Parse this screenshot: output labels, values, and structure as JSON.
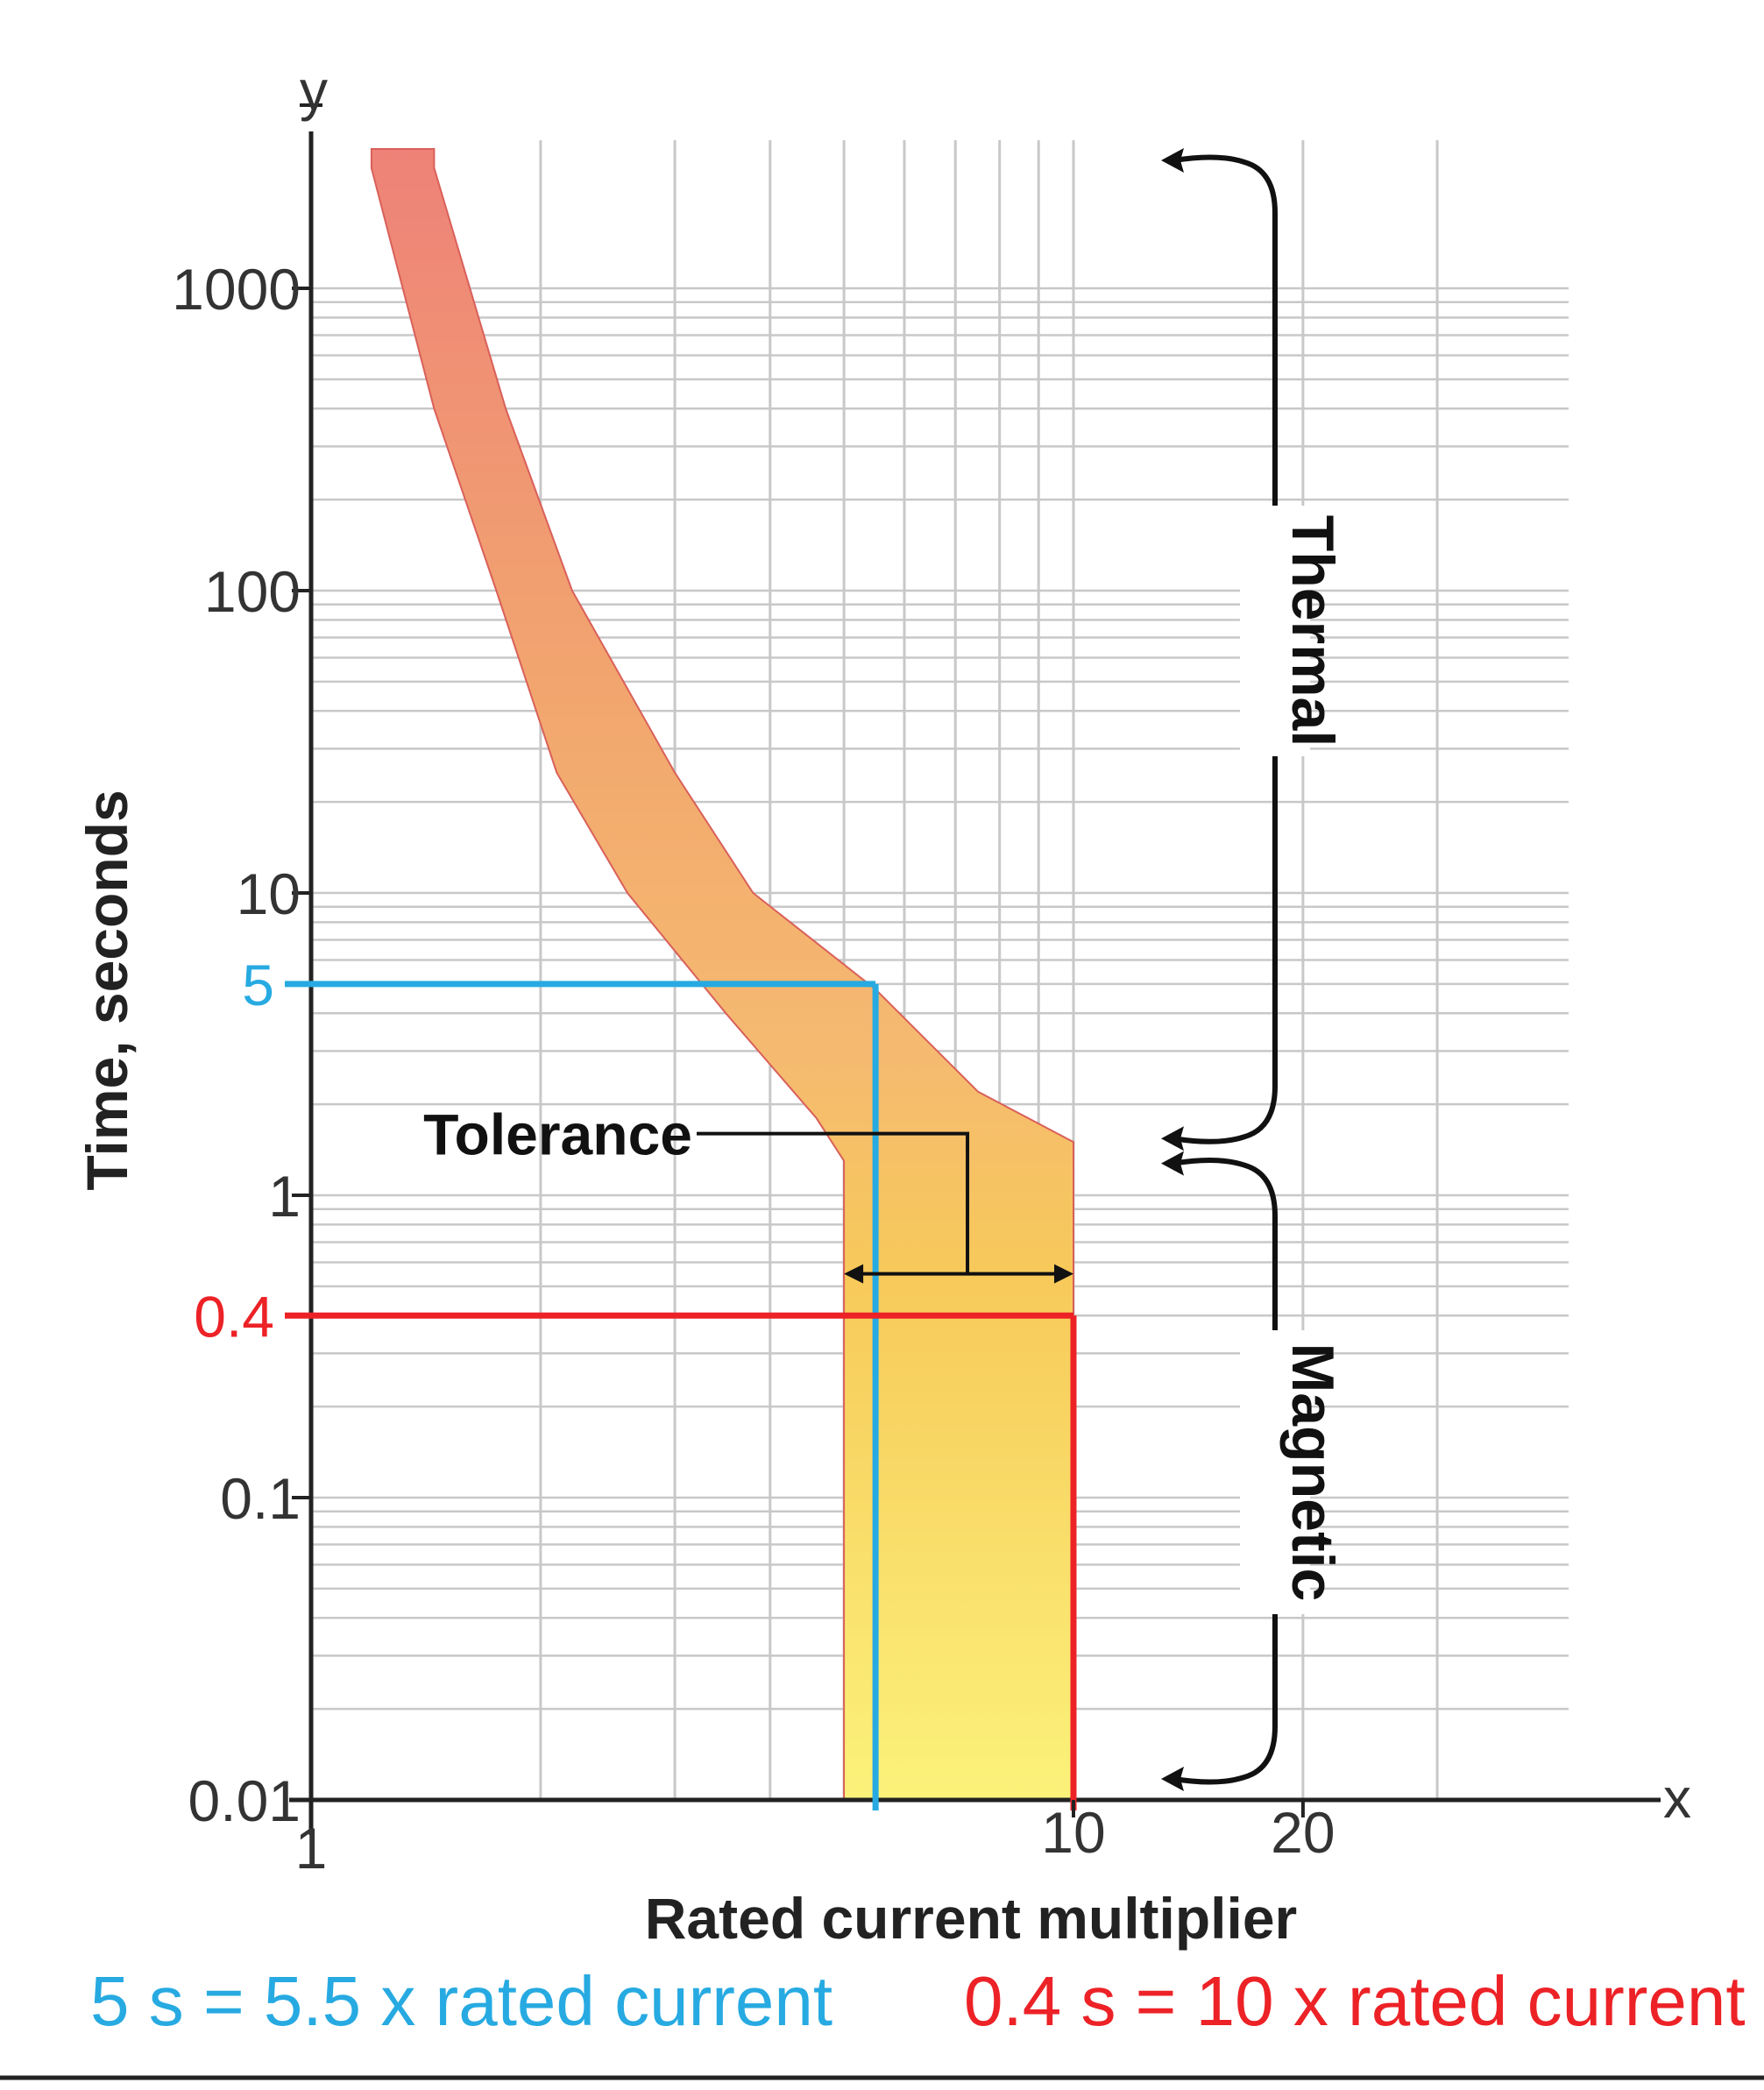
{
  "chart_data": {
    "type": "area",
    "title": "",
    "xlabel": "Rated current multiplier",
    "ylabel": "Time, seconds",
    "x_axis_letter": "x",
    "y_axis_letter": "y",
    "xscale": "log",
    "yscale": "log",
    "xlim": [
      1,
      50
    ],
    "ylim": [
      0.01,
      5000
    ],
    "x_ticks": [
      {
        "value": 1,
        "label": "1"
      },
      {
        "value": 10,
        "label": "10"
      },
      {
        "value": 20,
        "label": "20"
      }
    ],
    "y_ticks": [
      {
        "value": 1000,
        "label": "1000"
      },
      {
        "value": 100,
        "label": "100"
      },
      {
        "value": 10,
        "label": "10"
      },
      {
        "value": 1,
        "label": "1"
      },
      {
        "value": 0.1,
        "label": "0.1"
      },
      {
        "value": 0.01,
        "label": "0.01"
      }
    ],
    "highlight_ticks": [
      {
        "value": 5,
        "label": "5",
        "color": "#27aae1"
      },
      {
        "value": 0.4,
        "label": "0.4",
        "color": "#ec2227"
      }
    ],
    "grid": true,
    "tolerance_band": {
      "label": "Tolerance",
      "left_boundary": [
        [
          1.2,
          2500
        ],
        [
          1.45,
          400
        ],
        [
          1.75,
          100
        ],
        [
          2.1,
          25
        ],
        [
          2.6,
          10
        ],
        [
          3.5,
          4
        ],
        [
          4.6,
          1.8
        ],
        [
          5.0,
          1.3
        ],
        [
          5.0,
          0.01
        ]
      ],
      "right_boundary": [
        [
          1.45,
          2500
        ],
        [
          1.8,
          400
        ],
        [
          2.2,
          100
        ],
        [
          3.0,
          25
        ],
        [
          3.8,
          10
        ],
        [
          5.5,
          4.8
        ],
        [
          7.5,
          2.2
        ],
        [
          10.0,
          1.5
        ],
        [
          10.0,
          0.01
        ]
      ],
      "tolerance_range_x": [
        5.0,
        10.0
      ],
      "tolerance_arrow_y": 0.55
    },
    "reference_lines": [
      {
        "x": 5.5,
        "y": 5,
        "color": "#27aae1"
      },
      {
        "x": 10,
        "y": 0.4,
        "color": "#ec2227"
      }
    ],
    "regions": [
      {
        "label": "Thermal",
        "y_range": [
          1.5,
          2500
        ]
      },
      {
        "label": "Magnetic",
        "y_range": [
          0.01,
          1.4
        ]
      }
    ],
    "annotations": [
      {
        "text": "5 s = 5.5 x rated current",
        "color": "#27aae1"
      },
      {
        "text": "0.4 s = 10 x rated current",
        "color": "#ec2227"
      }
    ]
  }
}
